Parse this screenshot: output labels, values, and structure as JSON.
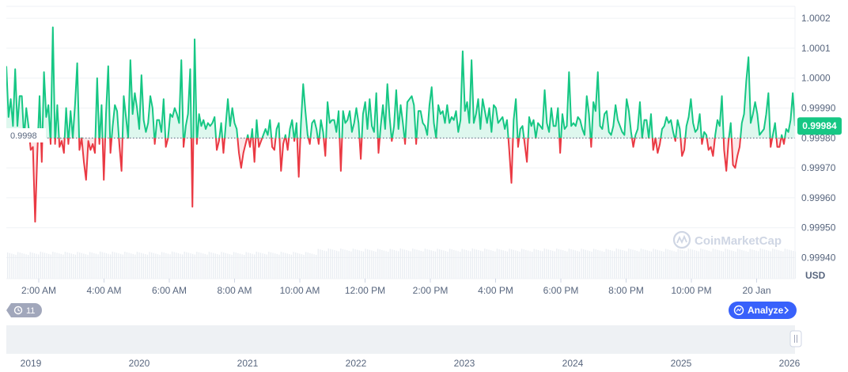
{
  "chart_data": {
    "type": "line",
    "title": "",
    "unit": "USD",
    "ylim": [
      0.99933,
      1.00024
    ],
    "reference_value": 0.9998,
    "reference_label": "0.9998",
    "current_price_label": "0.99984",
    "y_ticks": [
      {
        "value": 1.0002,
        "label": "1.0002"
      },
      {
        "value": 1.0001,
        "label": "1.0001"
      },
      {
        "value": 1.0,
        "label": "1.0000"
      },
      {
        "value": 0.9999,
        "label": "0.99990"
      },
      {
        "value": 0.9998,
        "label": "0.99980"
      },
      {
        "value": 0.9997,
        "label": "0.99970"
      },
      {
        "value": 0.9996,
        "label": "0.99960"
      },
      {
        "value": 0.9995,
        "label": "0.99950"
      },
      {
        "value": 0.9994,
        "label": "0.99940"
      }
    ],
    "x_ticks": [
      "2:00 AM",
      "4:00 AM",
      "6:00 AM",
      "8:00 AM",
      "10:00 AM",
      "12:00 PM",
      "2:00 PM",
      "4:00 PM",
      "6:00 PM",
      "8:00 PM",
      "10:00 PM",
      "20 Jan"
    ],
    "values": [
      1.00004,
      0.99987,
      0.99993,
      0.99984,
      1.00003,
      0.99984,
      0.99994,
      0.99994,
      0.9998,
      0.9999,
      0.99984,
      0.99976,
      0.99977,
      0.99952,
      0.99975,
      0.99994,
      0.99972,
      1.00002,
      0.99987,
      0.99991,
      0.99978,
      1.00017,
      0.99978,
      0.99991,
      0.99977,
      0.99979,
      0.99975,
      0.9999,
      0.99978,
      0.99989,
      0.9998,
      0.99991,
      1.00005,
      0.99976,
      0.9998,
      0.99972,
      0.99966,
      0.99979,
      0.99976,
      0.99978,
      0.99975,
      1.0,
      0.99978,
      0.99991,
      0.99966,
      0.99988,
      1.00004,
      0.99975,
      0.99984,
      0.99991,
      0.99989,
      0.99978,
      0.99969,
      0.99994,
      0.99987,
      0.9998,
      1.00006,
      0.99988,
      0.99995,
      0.9999,
      0.99983,
      1.00001,
      0.99986,
      0.99982,
      0.99985,
      0.99994,
      0.9999,
      0.99978,
      0.99986,
      0.99986,
      0.99982,
      0.99993,
      0.99977,
      0.9998,
      0.99988,
      0.99987,
      0.9999,
      0.99988,
      0.99985,
      1.00006,
      0.99977,
      0.99984,
      0.99988,
      1.00003,
      0.99957,
      1.00013,
      0.99978,
      0.99988,
      0.99984,
      0.99986,
      0.99983,
      0.99985,
      0.99984,
      0.99985,
      0.99987,
      0.99976,
      0.99979,
      0.99985,
      0.99975,
      0.99984,
      0.99993,
      0.99984,
      0.9999,
      0.99985,
      0.99983,
      0.99975,
      0.9997,
      0.99975,
      0.99978,
      0.99981,
      0.99977,
      0.99983,
      0.99972,
      0.99986,
      0.99977,
      0.99979,
      0.99981,
      0.99983,
      0.99981,
      0.99986,
      0.99977,
      0.99976,
      0.99983,
      0.99985,
      0.99969,
      0.99978,
      0.99981,
      0.99976,
      0.99983,
      0.99986,
      0.99979,
      0.99985,
      0.99967,
      0.99985,
      0.99998,
      0.99989,
      0.99981,
      0.99978,
      0.99985,
      0.99986,
      0.99983,
      0.99978,
      0.99986,
      0.99982,
      0.99974,
      0.99992,
      0.99985,
      0.99986,
      0.99986,
      0.99982,
      0.99989,
      0.99969,
      0.99989,
      0.99985,
      0.99986,
      0.99989,
      0.99982,
      0.99985,
      0.9999,
      0.99985,
      0.99973,
      0.99988,
      0.99992,
      0.99983,
      0.99993,
      0.99984,
      0.99982,
      0.99995,
      0.99975,
      0.99984,
      0.99991,
      0.99983,
      0.99998,
      0.99987,
      0.99979,
      0.99984,
      0.99996,
      0.99983,
      0.99991,
      0.99985,
      0.99978,
      0.99992,
      0.99993,
      0.99994,
      0.99991,
      0.99978,
      0.99989,
      0.99989,
      0.99985,
      0.99984,
      0.99981,
      0.99991,
      0.99997,
      0.99985,
      0.9998,
      0.99991,
      0.99988,
      0.99989,
      0.99985,
      0.99991,
      0.99985,
      0.99987,
      0.99986,
      0.99989,
      0.99982,
      0.99986,
      1.00009,
      0.99989,
      0.99992,
      0.99985,
      1.00006,
      0.99985,
      0.99988,
      0.99993,
      0.99983,
      0.99993,
      0.99989,
      0.99985,
      0.9999,
      0.99982,
      0.99991,
      0.9999,
      0.99985,
      0.99986,
      0.99987,
      0.99983,
      0.99986,
      0.99976,
      0.99965,
      0.99986,
      0.99993,
      0.99977,
      0.99983,
      0.99984,
      0.99978,
      0.99972,
      0.99987,
      0.99984,
      0.99986,
      0.9998,
      0.99985,
      0.99984,
      0.99983,
      0.99996,
      0.99985,
      0.99982,
      0.9999,
      0.99984,
      0.99984,
      0.9999,
      0.99975,
      0.99988,
      0.99983,
      0.99984,
      1.00002,
      0.99984,
      0.99985,
      0.99984,
      0.99987,
      0.99986,
      0.99983,
      0.99981,
      0.99994,
      0.99988,
      0.99977,
      0.99992,
      0.99989,
      1.00002,
      0.99984,
      0.99983,
      0.99988,
      0.99989,
      0.99982,
      0.99981,
      0.99984,
      0.99991,
      0.99986,
      0.99984,
      0.99982,
      0.99981,
      0.99993,
      0.99989,
      0.99982,
      0.99977,
      0.99981,
      0.99983,
      0.99992,
      0.9998,
      0.99986,
      0.99986,
      0.9998,
      0.99988,
      0.99976,
      0.9998,
      0.99975,
      0.99978,
      0.99983,
      0.99984,
      0.99987,
      0.99985,
      0.99986,
      0.99982,
      0.99979,
      0.99986,
      0.99983,
      0.99974,
      0.99976,
      0.99984,
      0.99987,
      0.99993,
      0.99985,
      0.99982,
      0.99983,
      0.99988,
      0.99978,
      0.99982,
      0.99981,
      0.99976,
      0.99977,
      0.99974,
      0.99981,
      0.99986,
      0.99984,
      0.99994,
      0.99976,
      0.99969,
      0.99979,
      0.99985,
      0.99971,
      0.9997,
      0.99974,
      0.99977,
      0.99985,
      0.99988,
      0.99999,
      1.00007,
      0.99985,
      0.99988,
      0.99992,
      0.99988,
      0.99981,
      0.99982,
      0.99983,
      0.99988,
      0.99995,
      0.99977,
      0.99981,
      0.99985,
      0.99977,
      0.99977,
      0.99981,
      0.99978,
      0.99983,
      0.99982,
      0.99986,
      0.99995,
      0.99984
    ]
  },
  "watermark": "CoinMarketCap",
  "range_selector": {
    "years": [
      "2019",
      "2020",
      "2021",
      "2022",
      "2023",
      "2024",
      "2025",
      "2026"
    ]
  },
  "badges": {
    "history_count": "11",
    "analyze_label": "Analyze"
  },
  "colors": {
    "up": "#16c784",
    "down": "#ea3943",
    "accent": "#3861fb",
    "axis_text": "#58667e"
  }
}
